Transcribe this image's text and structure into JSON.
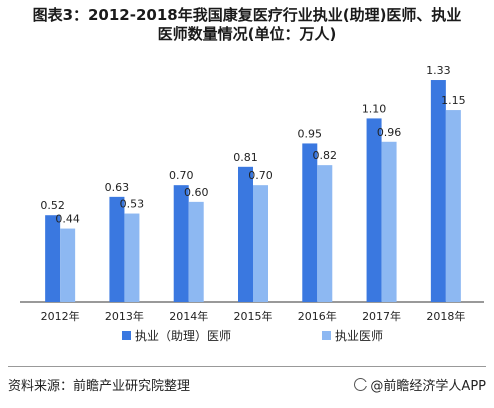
{
  "title_line1": "图表3：2012-2018年我国康复医疗行业执业(助理)医师、执业",
  "title_line2": "医师数量情况(单位：万人)",
  "source": "资料来源：前瞻产业研究院整理",
  "brand": "@前瞻经济学人APP",
  "brand_icon": "brand-swirl-icon",
  "chart_data": {
    "type": "bar",
    "title": "图表3：2012-2018年我国康复医疗行业执业(助理)医师、执业医师数量情况(单位：万人)",
    "categories": [
      "2012年",
      "2013年",
      "2014年",
      "2015年",
      "2016年",
      "2017年",
      "2018年"
    ],
    "series": [
      {
        "name": "执业（助理）医师",
        "color": "#3a78e0",
        "values": [
          0.52,
          0.63,
          0.7,
          0.81,
          0.95,
          1.1,
          1.33
        ],
        "labels": [
          "0.52",
          "0.63",
          "0.70",
          "0.81",
          "0.95",
          "1.10",
          "1.33"
        ]
      },
      {
        "name": "执业医师",
        "color": "#8db8f2",
        "values": [
          0.44,
          0.53,
          0.6,
          0.7,
          0.82,
          0.96,
          1.15
        ],
        "labels": [
          "0.44",
          "0.53",
          "0.60",
          "0.70",
          "0.82",
          "0.96",
          "1.15"
        ]
      }
    ],
    "ylim": [
      0,
      1.45
    ],
    "grid": false,
    "legend": "bottom"
  }
}
